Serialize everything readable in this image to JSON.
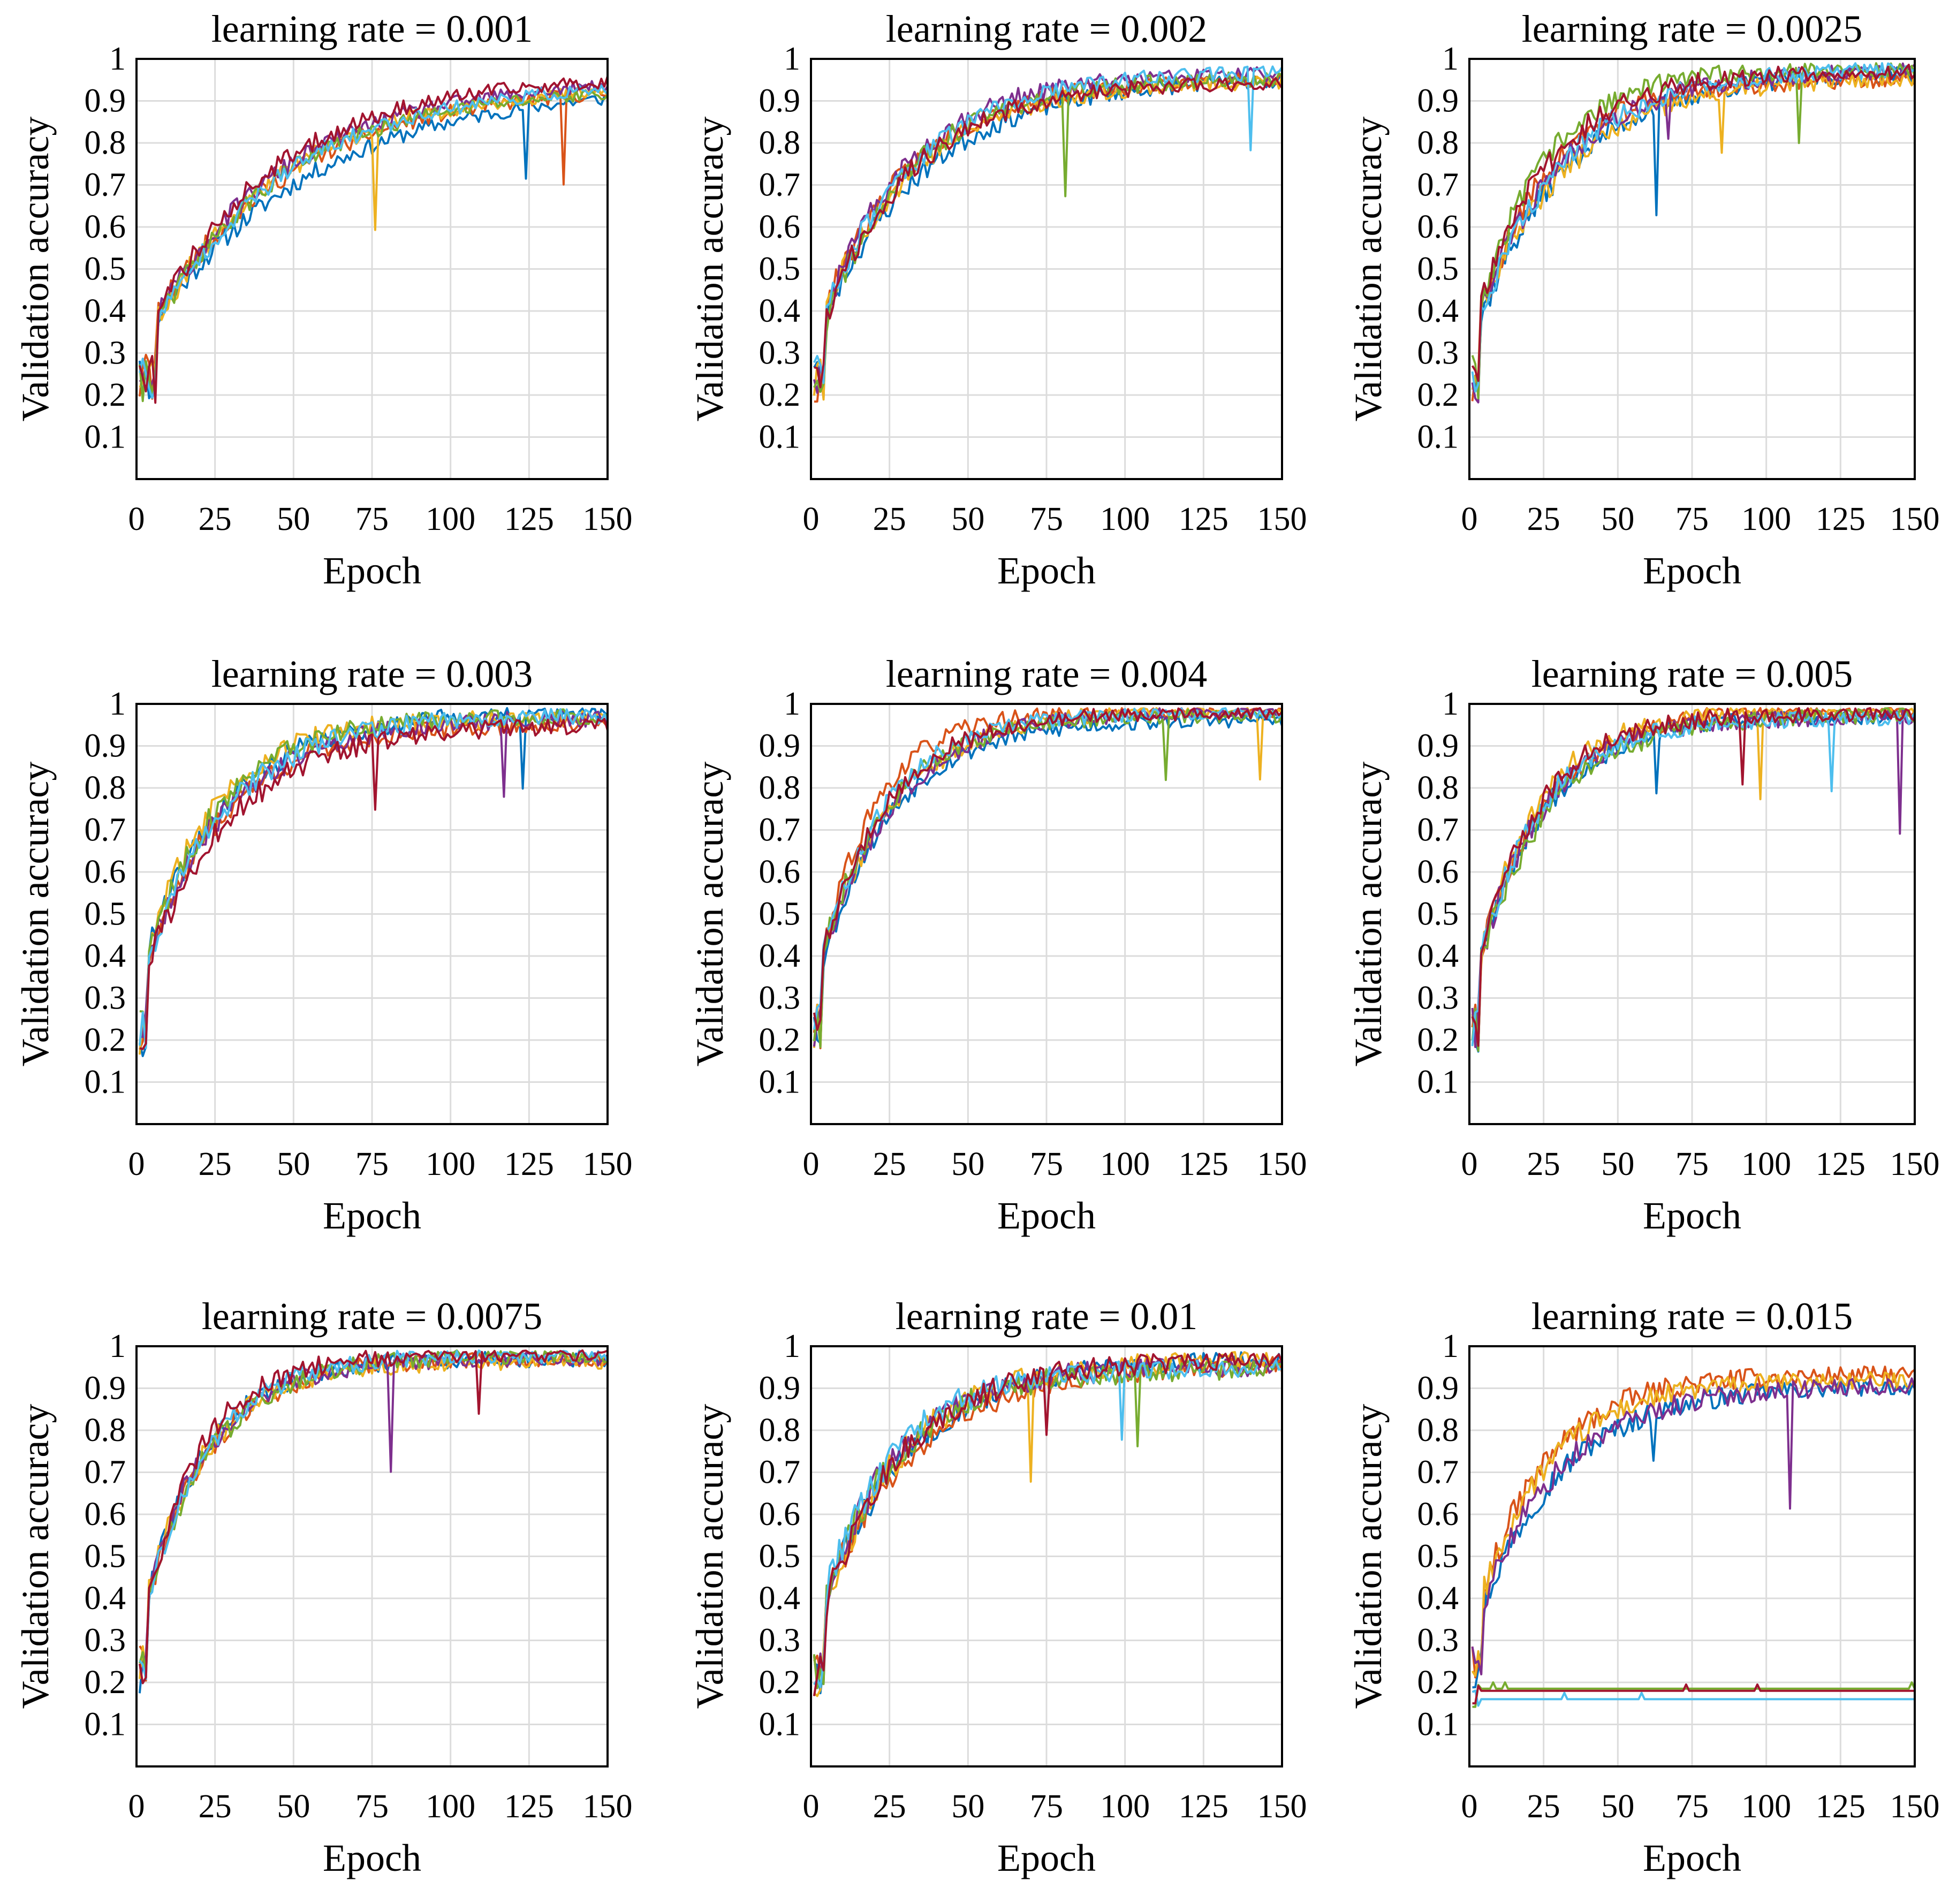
{
  "colors": [
    "#0072BD",
    "#D95319",
    "#EDB120",
    "#7E2F8E",
    "#77AC30",
    "#4DBEEE",
    "#A2142F"
  ],
  "chart_data": [
    {
      "type": "line",
      "title": "learning rate = 0.001",
      "xlabel": "Epoch",
      "ylabel": "Validation accuracy",
      "xlim": [
        0,
        150
      ],
      "ylim": [
        0,
        1
      ],
      "xticks": [
        "0",
        "25",
        "50",
        "75",
        "100",
        "125",
        "150"
      ],
      "yticks": [
        "0.1",
        "0.2",
        "0.3",
        "0.4",
        "0.5",
        "0.6",
        "0.7",
        "0.8",
        "0.9",
        "1"
      ],
      "series_count": 7,
      "start": 0.18,
      "final": 0.945,
      "rate": 0.022,
      "jump_epoch": 6,
      "noise": 0.02,
      "seed": 11,
      "collapsed": 0
    },
    {
      "type": "line",
      "title": "learning rate = 0.002",
      "xlabel": "Epoch",
      "ylabel": "Validation accuracy",
      "xlim": [
        0,
        150
      ],
      "ylim": [
        0,
        1
      ],
      "xticks": [
        "0",
        "25",
        "50",
        "75",
        "100",
        "125",
        "150"
      ],
      "yticks": [
        "0.1",
        "0.2",
        "0.3",
        "0.4",
        "0.5",
        "0.6",
        "0.7",
        "0.8",
        "0.9",
        "1"
      ],
      "series_count": 7,
      "start": 0.18,
      "final": 0.96,
      "rate": 0.033,
      "jump_epoch": 4,
      "noise": 0.022,
      "seed": 23,
      "collapsed": 0
    },
    {
      "type": "line",
      "title": "learning rate = 0.0025",
      "xlabel": "Epoch",
      "ylabel": "Validation accuracy",
      "xlim": [
        0,
        150
      ],
      "ylim": [
        0,
        1
      ],
      "xticks": [
        "0",
        "25",
        "50",
        "75",
        "100",
        "125",
        "150"
      ],
      "yticks": [
        "0.1",
        "0.2",
        "0.3",
        "0.4",
        "0.5",
        "0.6",
        "0.7",
        "0.8",
        "0.9",
        "1"
      ],
      "series_count": 7,
      "start": 0.18,
      "final": 0.965,
      "rate": 0.037,
      "jump_epoch": 3,
      "noise": 0.024,
      "seed": 37,
      "collapsed": 0
    },
    {
      "type": "line",
      "title": "learning rate = 0.003",
      "xlabel": "Epoch",
      "ylabel": "Validation accuracy",
      "xlim": [
        0,
        150
      ],
      "ylim": [
        0,
        1
      ],
      "xticks": [
        "0",
        "25",
        "50",
        "75",
        "100",
        "125",
        "150"
      ],
      "yticks": [
        "0.1",
        "0.2",
        "0.3",
        "0.4",
        "0.5",
        "0.6",
        "0.7",
        "0.8",
        "0.9",
        "1"
      ],
      "series_count": 7,
      "start": 0.16,
      "final": 0.965,
      "rate": 0.042,
      "jump_epoch": 3,
      "noise": 0.024,
      "seed": 41,
      "collapsed": 0
    },
    {
      "type": "line",
      "title": "learning rate = 0.004",
      "xlabel": "Epoch",
      "ylabel": "Validation accuracy",
      "xlim": [
        0,
        150
      ],
      "ylim": [
        0,
        1
      ],
      "xticks": [
        "0",
        "25",
        "50",
        "75",
        "100",
        "125",
        "150"
      ],
      "yticks": [
        "0.1",
        "0.2",
        "0.3",
        "0.4",
        "0.5",
        "0.6",
        "0.7",
        "0.8",
        "0.9",
        "1"
      ],
      "series_count": 7,
      "start": 0.17,
      "final": 0.975,
      "rate": 0.05,
      "jump_epoch": 3,
      "noise": 0.02,
      "seed": 53,
      "collapsed": 0
    },
    {
      "type": "line",
      "title": "learning rate = 0.005",
      "xlabel": "Epoch",
      "ylabel": "Validation accuracy",
      "xlim": [
        0,
        150
      ],
      "ylim": [
        0,
        1
      ],
      "xticks": [
        "0",
        "25",
        "50",
        "75",
        "100",
        "125",
        "150"
      ],
      "yticks": [
        "0.1",
        "0.2",
        "0.3",
        "0.4",
        "0.5",
        "0.6",
        "0.7",
        "0.8",
        "0.9",
        "1"
      ],
      "series_count": 7,
      "start": 0.17,
      "final": 0.975,
      "rate": 0.048,
      "jump_epoch": 3,
      "noise": 0.022,
      "seed": 67,
      "collapsed": 0
    },
    {
      "type": "line",
      "title": "learning rate = 0.0075",
      "xlabel": "Epoch",
      "ylabel": "Validation accuracy",
      "xlim": [
        0,
        150
      ],
      "ylim": [
        0,
        1
      ],
      "xticks": [
        "0",
        "25",
        "50",
        "75",
        "100",
        "125",
        "150"
      ],
      "yticks": [
        "0.1",
        "0.2",
        "0.3",
        "0.4",
        "0.5",
        "0.6",
        "0.7",
        "0.8",
        "0.9",
        "1"
      ],
      "series_count": 7,
      "start": 0.17,
      "final": 0.97,
      "rate": 0.055,
      "jump_epoch": 3,
      "noise": 0.022,
      "seed": 79,
      "collapsed": 0
    },
    {
      "type": "line",
      "title": "learning rate = 0.01",
      "xlabel": "Epoch",
      "ylabel": "Validation accuracy",
      "xlim": [
        0,
        150
      ],
      "ylim": [
        0,
        1
      ],
      "xticks": [
        "0",
        "25",
        "50",
        "75",
        "100",
        "125",
        "150"
      ],
      "yticks": [
        "0.1",
        "0.2",
        "0.3",
        "0.4",
        "0.5",
        "0.6",
        "0.7",
        "0.8",
        "0.9",
        "1"
      ],
      "series_count": 7,
      "start": 0.16,
      "final": 0.96,
      "rate": 0.04,
      "jump_epoch": 4,
      "noise": 0.028,
      "seed": 83,
      "collapsed": 0
    },
    {
      "type": "line",
      "title": "learning rate = 0.015",
      "xlabel": "Epoch",
      "ylabel": "Validation accuracy",
      "xlim": [
        0,
        150
      ],
      "ylim": [
        0,
        1
      ],
      "xticks": [
        "0",
        "25",
        "50",
        "75",
        "100",
        "125",
        "150"
      ],
      "yticks": [
        "0.1",
        "0.2",
        "0.3",
        "0.4",
        "0.5",
        "0.6",
        "0.7",
        "0.8",
        "0.9",
        "1"
      ],
      "series_count": 7,
      "start": 0.17,
      "final": 0.92,
      "rate": 0.04,
      "jump_epoch": 4,
      "noise": 0.025,
      "seed": 97,
      "collapsed": 3,
      "collapsed_levels": [
        0.185,
        0.16,
        0.18
      ]
    }
  ]
}
